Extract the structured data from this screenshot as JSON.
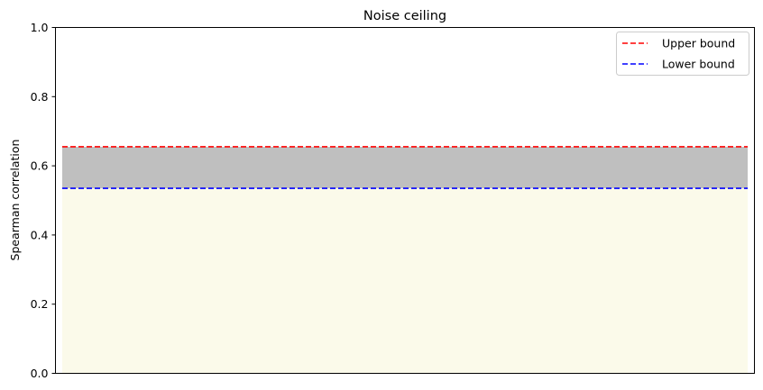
{
  "chart_data": {
    "type": "area",
    "title": "Noise ceiling",
    "xlabel": "",
    "ylabel": "Spearman correlation",
    "ylim": [
      0,
      1
    ],
    "yticks": [
      "0.0",
      "0.2",
      "0.4",
      "0.6",
      "0.8",
      "1.0"
    ],
    "ytick_values": [
      0.0,
      0.2,
      0.4,
      0.6,
      0.8,
      1.0
    ],
    "grid": false,
    "legend_position": "top-right",
    "bands": [
      {
        "from": 0,
        "to": 0.535,
        "color": "#fbfaea"
      },
      {
        "from": 0.535,
        "to": 0.655,
        "color": "#bfbfbf"
      }
    ],
    "series": [
      {
        "name": "Upper bound",
        "value": 0.655,
        "color": "#ff0000",
        "style": "dashed"
      },
      {
        "name": "Lower bound",
        "value": 0.535,
        "color": "#0000ff",
        "style": "dashed"
      }
    ]
  }
}
